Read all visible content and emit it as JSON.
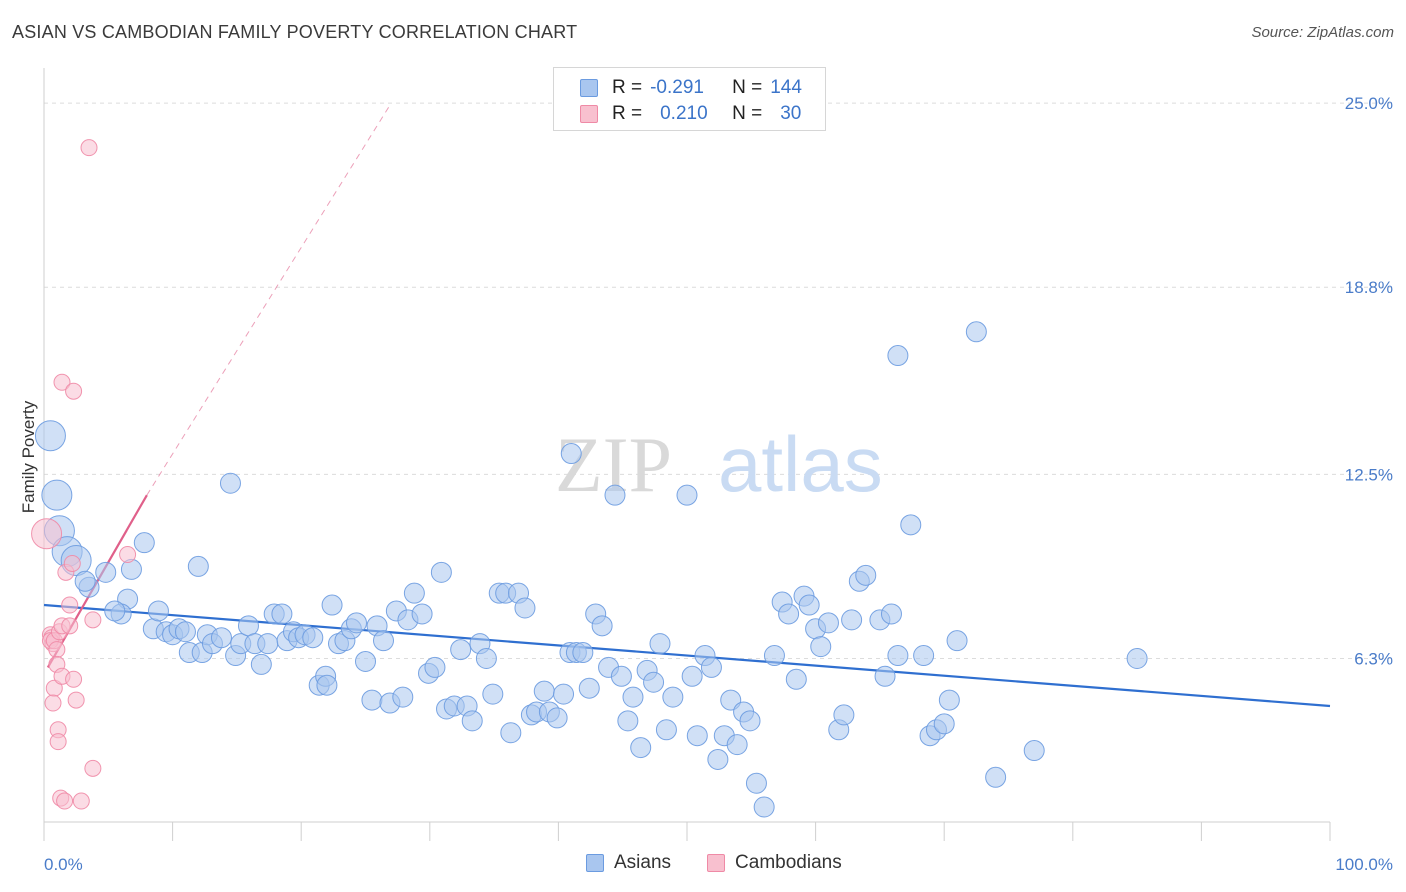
{
  "title": "ASIAN VS CAMBODIAN FAMILY POVERTY CORRELATION CHART",
  "source": "Source: ZipAtlas.com",
  "watermark": {
    "zip": "ZIP",
    "atlas": "atlas"
  },
  "legend_top": [
    {
      "r_label": "R =",
      "r_value": "-0.291",
      "n_label": "N =",
      "n_value": "144",
      "color": "#a9c6ef",
      "border": "#6b9be0"
    },
    {
      "r_label": "R =",
      "r_value": "0.210",
      "n_label": "N =",
      "n_value": "30",
      "color": "#f8c0cf",
      "border": "#ef8aa6"
    }
  ],
  "legend_bottom": [
    {
      "label": "Asians",
      "color": "#a9c6ef",
      "border": "#6b9be0"
    },
    {
      "label": "Cambodians",
      "color": "#f8c0cf",
      "border": "#ef8aa6"
    }
  ],
  "chart_data": {
    "type": "scatter",
    "title": "ASIAN VS CAMBODIAN FAMILY POVERTY CORRELATION CHART",
    "ylabel": "Family Poverty",
    "xlim": [
      0,
      100
    ],
    "ylim": [
      0,
      26
    ],
    "x_tick_labels": [
      "0.0%",
      "100.0%"
    ],
    "y_ticks": [
      6.3,
      12.5,
      18.8,
      25.0
    ],
    "y_tick_labels": [
      "6.3%",
      "12.5%",
      "18.8%",
      "25.0%"
    ],
    "grid": true,
    "legend_position": "top-center",
    "series": [
      {
        "name": "Asians",
        "color": "#6b9be0",
        "fill": "#a9c6ef",
        "trend": {
          "x": [
            0,
            100
          ],
          "y": [
            8.1,
            4.7
          ],
          "color": "#2f6fd0"
        },
        "points": [
          {
            "x": 0.5,
            "y": 13.8,
            "s": "l"
          },
          {
            "x": 1.0,
            "y": 11.8,
            "s": "l"
          },
          {
            "x": 1.2,
            "y": 10.6,
            "s": "l"
          },
          {
            "x": 1.8,
            "y": 9.9,
            "s": "l"
          },
          {
            "x": 2.5,
            "y": 9.6,
            "s": "l"
          },
          {
            "x": 3.5,
            "y": 8.7,
            "s": "m"
          },
          {
            "x": 3.2,
            "y": 8.9,
            "s": "m"
          },
          {
            "x": 4.8,
            "y": 9.2,
            "s": "m"
          },
          {
            "x": 7.8,
            "y": 10.2,
            "s": "m"
          },
          {
            "x": 6.5,
            "y": 8.3,
            "s": "m"
          },
          {
            "x": 6.0,
            "y": 7.8,
            "s": "m"
          },
          {
            "x": 5.5,
            "y": 7.9,
            "s": "m"
          },
          {
            "x": 6.8,
            "y": 9.3,
            "s": "m"
          },
          {
            "x": 8.5,
            "y": 7.3,
            "s": "m"
          },
          {
            "x": 8.9,
            "y": 7.9,
            "s": "m"
          },
          {
            "x": 9.5,
            "y": 7.2,
            "s": "m"
          },
          {
            "x": 10.0,
            "y": 7.1,
            "s": "m"
          },
          {
            "x": 10.5,
            "y": 7.3,
            "s": "m"
          },
          {
            "x": 11.0,
            "y": 7.2,
            "s": "m"
          },
          {
            "x": 11.3,
            "y": 6.5,
            "s": "m"
          },
          {
            "x": 12.3,
            "y": 6.5,
            "s": "m"
          },
          {
            "x": 12.7,
            "y": 7.1,
            "s": "m"
          },
          {
            "x": 13.1,
            "y": 6.8,
            "s": "m"
          },
          {
            "x": 13.8,
            "y": 7.0,
            "s": "m"
          },
          {
            "x": 14.9,
            "y": 6.4,
            "s": "m"
          },
          {
            "x": 15.3,
            "y": 6.8,
            "s": "m"
          },
          {
            "x": 15.9,
            "y": 7.4,
            "s": "m"
          },
          {
            "x": 16.4,
            "y": 6.8,
            "s": "m"
          },
          {
            "x": 16.9,
            "y": 6.1,
            "s": "m"
          },
          {
            "x": 17.4,
            "y": 6.8,
            "s": "m"
          },
          {
            "x": 17.9,
            "y": 7.8,
            "s": "m"
          },
          {
            "x": 18.5,
            "y": 7.8,
            "s": "m"
          },
          {
            "x": 18.9,
            "y": 6.9,
            "s": "m"
          },
          {
            "x": 19.4,
            "y": 7.2,
            "s": "m"
          },
          {
            "x": 19.8,
            "y": 7.0,
            "s": "m"
          },
          {
            "x": 20.3,
            "y": 7.1,
            "s": "m"
          },
          {
            "x": 20.9,
            "y": 7.0,
            "s": "m"
          },
          {
            "x": 21.4,
            "y": 5.4,
            "s": "m"
          },
          {
            "x": 21.9,
            "y": 5.7,
            "s": "m"
          },
          {
            "x": 22.4,
            "y": 8.1,
            "s": "m"
          },
          {
            "x": 22.9,
            "y": 6.8,
            "s": "m"
          },
          {
            "x": 23.4,
            "y": 6.9,
            "s": "m"
          },
          {
            "x": 23.9,
            "y": 7.3,
            "s": "m"
          },
          {
            "x": 24.3,
            "y": 7.5,
            "s": "m"
          },
          {
            "x": 25.0,
            "y": 6.2,
            "s": "m"
          },
          {
            "x": 25.5,
            "y": 4.9,
            "s": "m"
          },
          {
            "x": 25.9,
            "y": 7.4,
            "s": "m"
          },
          {
            "x": 26.4,
            "y": 6.9,
            "s": "m"
          },
          {
            "x": 26.9,
            "y": 4.8,
            "s": "m"
          },
          {
            "x": 27.4,
            "y": 7.9,
            "s": "m"
          },
          {
            "x": 27.9,
            "y": 5.0,
            "s": "m"
          },
          {
            "x": 28.3,
            "y": 7.6,
            "s": "m"
          },
          {
            "x": 28.8,
            "y": 8.5,
            "s": "m"
          },
          {
            "x": 29.4,
            "y": 7.8,
            "s": "m"
          },
          {
            "x": 29.9,
            "y": 5.8,
            "s": "m"
          },
          {
            "x": 30.4,
            "y": 6.0,
            "s": "m"
          },
          {
            "x": 30.9,
            "y": 9.2,
            "s": "m"
          },
          {
            "x": 31.3,
            "y": 4.6,
            "s": "m"
          },
          {
            "x": 31.9,
            "y": 4.7,
            "s": "m"
          },
          {
            "x": 32.4,
            "y": 6.6,
            "s": "m"
          },
          {
            "x": 32.9,
            "y": 4.7,
            "s": "m"
          },
          {
            "x": 33.3,
            "y": 4.2,
            "s": "m"
          },
          {
            "x": 33.9,
            "y": 6.8,
            "s": "m"
          },
          {
            "x": 34.4,
            "y": 6.3,
            "s": "m"
          },
          {
            "x": 34.9,
            "y": 5.1,
            "s": "m"
          },
          {
            "x": 35.4,
            "y": 8.5,
            "s": "m"
          },
          {
            "x": 35.9,
            "y": 8.5,
            "s": "m"
          },
          {
            "x": 36.3,
            "y": 3.8,
            "s": "m"
          },
          {
            "x": 36.9,
            "y": 8.5,
            "s": "m"
          },
          {
            "x": 37.4,
            "y": 8.0,
            "s": "m"
          },
          {
            "x": 37.9,
            "y": 4.4,
            "s": "m"
          },
          {
            "x": 38.3,
            "y": 4.5,
            "s": "m"
          },
          {
            "x": 38.9,
            "y": 5.2,
            "s": "m"
          },
          {
            "x": 39.3,
            "y": 4.5,
            "s": "m"
          },
          {
            "x": 39.9,
            "y": 4.3,
            "s": "m"
          },
          {
            "x": 40.4,
            "y": 5.1,
            "s": "m"
          },
          {
            "x": 40.9,
            "y": 6.5,
            "s": "m"
          },
          {
            "x": 41.4,
            "y": 6.5,
            "s": "m"
          },
          {
            "x": 41.9,
            "y": 6.5,
            "s": "m"
          },
          {
            "x": 41.0,
            "y": 13.2,
            "s": "m"
          },
          {
            "x": 42.4,
            "y": 5.3,
            "s": "m"
          },
          {
            "x": 42.9,
            "y": 7.8,
            "s": "m"
          },
          {
            "x": 43.4,
            "y": 7.4,
            "s": "m"
          },
          {
            "x": 43.9,
            "y": 6.0,
            "s": "m"
          },
          {
            "x": 44.4,
            "y": 11.8,
            "s": "m"
          },
          {
            "x": 44.9,
            "y": 5.7,
            "s": "m"
          },
          {
            "x": 45.4,
            "y": 4.2,
            "s": "m"
          },
          {
            "x": 45.8,
            "y": 5.0,
            "s": "m"
          },
          {
            "x": 46.4,
            "y": 3.3,
            "s": "m"
          },
          {
            "x": 46.9,
            "y": 5.9,
            "s": "m"
          },
          {
            "x": 47.4,
            "y": 5.5,
            "s": "m"
          },
          {
            "x": 47.9,
            "y": 6.8,
            "s": "m"
          },
          {
            "x": 48.4,
            "y": 3.9,
            "s": "m"
          },
          {
            "x": 48.9,
            "y": 5.0,
            "s": "m"
          },
          {
            "x": 50.0,
            "y": 11.8,
            "s": "m"
          },
          {
            "x": 50.4,
            "y": 5.7,
            "s": "m"
          },
          {
            "x": 50.8,
            "y": 3.7,
            "s": "m"
          },
          {
            "x": 51.4,
            "y": 6.4,
            "s": "m"
          },
          {
            "x": 51.9,
            "y": 6.0,
            "s": "m"
          },
          {
            "x": 52.4,
            "y": 2.9,
            "s": "m"
          },
          {
            "x": 52.9,
            "y": 3.7,
            "s": "m"
          },
          {
            "x": 53.4,
            "y": 4.9,
            "s": "m"
          },
          {
            "x": 53.9,
            "y": 3.4,
            "s": "m"
          },
          {
            "x": 54.4,
            "y": 4.5,
            "s": "m"
          },
          {
            "x": 54.9,
            "y": 4.2,
            "s": "m"
          },
          {
            "x": 55.4,
            "y": 2.1,
            "s": "m"
          },
          {
            "x": 56.0,
            "y": 1.3,
            "s": "m"
          },
          {
            "x": 56.8,
            "y": 6.4,
            "s": "m"
          },
          {
            "x": 57.4,
            "y": 8.2,
            "s": "m"
          },
          {
            "x": 57.9,
            "y": 7.8,
            "s": "m"
          },
          {
            "x": 58.5,
            "y": 5.6,
            "s": "m"
          },
          {
            "x": 59.1,
            "y": 8.4,
            "s": "m"
          },
          {
            "x": 59.5,
            "y": 8.1,
            "s": "m"
          },
          {
            "x": 60.0,
            "y": 7.3,
            "s": "m"
          },
          {
            "x": 60.4,
            "y": 6.7,
            "s": "m"
          },
          {
            "x": 61.0,
            "y": 7.5,
            "s": "m"
          },
          {
            "x": 61.8,
            "y": 3.9,
            "s": "m"
          },
          {
            "x": 62.2,
            "y": 4.4,
            "s": "m"
          },
          {
            "x": 62.8,
            "y": 7.6,
            "s": "m"
          },
          {
            "x": 63.4,
            "y": 8.9,
            "s": "m"
          },
          {
            "x": 63.9,
            "y": 9.1,
            "s": "m"
          },
          {
            "x": 65.0,
            "y": 7.6,
            "s": "m"
          },
          {
            "x": 65.4,
            "y": 5.7,
            "s": "m"
          },
          {
            "x": 65.9,
            "y": 7.8,
            "s": "m"
          },
          {
            "x": 66.4,
            "y": 6.4,
            "s": "m"
          },
          {
            "x": 66.4,
            "y": 16.5,
            "s": "m"
          },
          {
            "x": 67.4,
            "y": 10.8,
            "s": "m"
          },
          {
            "x": 68.4,
            "y": 6.4,
            "s": "m"
          },
          {
            "x": 68.9,
            "y": 3.7,
            "s": "m"
          },
          {
            "x": 69.4,
            "y": 3.9,
            "s": "m"
          },
          {
            "x": 70.0,
            "y": 4.1,
            "s": "m"
          },
          {
            "x": 70.4,
            "y": 4.9,
            "s": "m"
          },
          {
            "x": 71.0,
            "y": 6.9,
            "s": "m"
          },
          {
            "x": 72.5,
            "y": 17.3,
            "s": "m"
          },
          {
            "x": 74.0,
            "y": 2.3,
            "s": "m"
          },
          {
            "x": 77.0,
            "y": 3.2,
            "s": "m"
          },
          {
            "x": 85.0,
            "y": 6.3,
            "s": "m"
          },
          {
            "x": 22.0,
            "y": 5.4,
            "s": "m"
          },
          {
            "x": 14.5,
            "y": 12.2,
            "s": "m"
          },
          {
            "x": 12.0,
            "y": 9.4,
            "s": "m"
          }
        ]
      },
      {
        "name": "Cambodians",
        "color": "#ef8aa6",
        "fill": "#f8c0cf",
        "trend": {
          "x": [
            0.3,
            8.0
          ],
          "y": [
            6.0,
            11.8
          ],
          "color": "#e0608a",
          "dashed_extension_to": [
            27.0,
            25.0
          ]
        },
        "points": [
          {
            "x": 0.2,
            "y": 10.5,
            "s": "l"
          },
          {
            "x": 0.5,
            "y": 7.1,
            "s": "s"
          },
          {
            "x": 0.6,
            "y": 7.0,
            "s": "s"
          },
          {
            "x": 0.7,
            "y": 6.8,
            "s": "s"
          },
          {
            "x": 0.5,
            "y": 6.9,
            "s": "s"
          },
          {
            "x": 0.8,
            "y": 6.9,
            "s": "s"
          },
          {
            "x": 1.0,
            "y": 6.6,
            "s": "s"
          },
          {
            "x": 1.0,
            "y": 6.1,
            "s": "s"
          },
          {
            "x": 1.2,
            "y": 7.2,
            "s": "s"
          },
          {
            "x": 1.4,
            "y": 7.4,
            "s": "s"
          },
          {
            "x": 0.8,
            "y": 5.3,
            "s": "s"
          },
          {
            "x": 0.7,
            "y": 4.8,
            "s": "s"
          },
          {
            "x": 1.1,
            "y": 3.9,
            "s": "s"
          },
          {
            "x": 1.1,
            "y": 3.5,
            "s": "s"
          },
          {
            "x": 1.3,
            "y": 1.6,
            "s": "s"
          },
          {
            "x": 1.6,
            "y": 1.5,
            "s": "s"
          },
          {
            "x": 1.4,
            "y": 5.7,
            "s": "s"
          },
          {
            "x": 1.7,
            "y": 9.2,
            "s": "s"
          },
          {
            "x": 2.2,
            "y": 9.5,
            "s": "s"
          },
          {
            "x": 2.0,
            "y": 8.1,
            "s": "s"
          },
          {
            "x": 2.0,
            "y": 7.4,
            "s": "s"
          },
          {
            "x": 2.3,
            "y": 5.6,
            "s": "s"
          },
          {
            "x": 2.5,
            "y": 4.9,
            "s": "s"
          },
          {
            "x": 2.9,
            "y": 1.5,
            "s": "s"
          },
          {
            "x": 3.8,
            "y": 7.6,
            "s": "s"
          },
          {
            "x": 3.8,
            "y": 2.6,
            "s": "s"
          },
          {
            "x": 6.5,
            "y": 9.8,
            "s": "s"
          },
          {
            "x": 1.4,
            "y": 15.6,
            "s": "s"
          },
          {
            "x": 2.3,
            "y": 15.3,
            "s": "s"
          },
          {
            "x": 3.5,
            "y": 23.5,
            "s": "s"
          }
        ]
      }
    ]
  }
}
